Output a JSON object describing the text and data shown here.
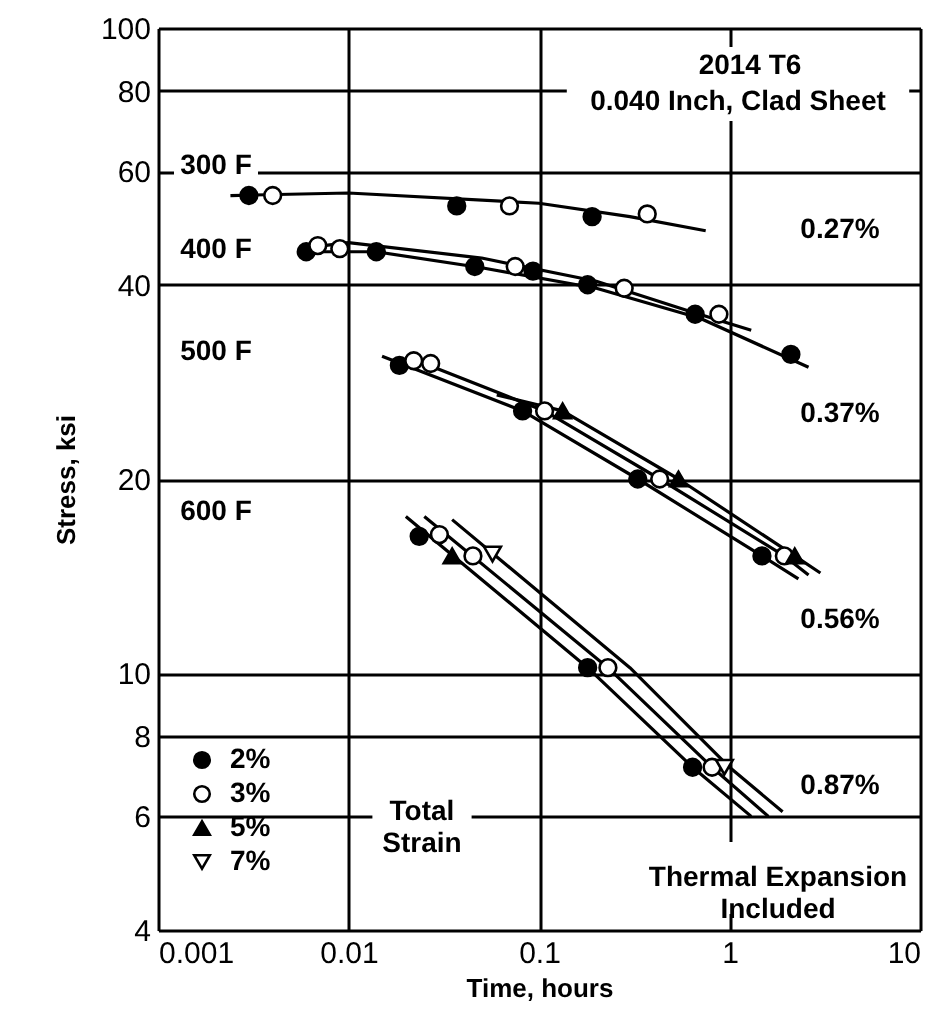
{
  "chart_data": {
    "type": "scatter",
    "title": "2014 T6",
    "subtitle": "0.040 Inch, Clad Sheet",
    "xlabel": "Time, hours",
    "ylabel": "Stress, ksi",
    "legend_title": "Total Strain",
    "legend": "bottom left",
    "grid": true,
    "log": "xy",
    "xlim": [
      0.001,
      10
    ],
    "ylim": [
      4,
      100
    ],
    "xticks": [
      0.001,
      0.01,
      0.1,
      1,
      10
    ],
    "yticks": [
      4,
      6,
      8,
      10,
      20,
      40,
      60,
      80,
      100
    ],
    "series": [
      {
        "name": "2%",
        "marker": "circle",
        "color": "#000000",
        "x": [
          0.003,
          0.037,
          0.19,
          0.006,
          0.014,
          0.046,
          0.093,
          0.18,
          0.66,
          2.1,
          0.0185,
          0.082,
          0.33,
          1.48,
          0.0235,
          0.18,
          0.64
        ],
        "values": [
          55,
          53,
          51,
          45,
          45,
          42.7,
          42,
          40,
          36,
          31.2,
          30,
          25.5,
          20,
          15.2,
          16.3,
          10.2,
          7.15
        ]
      },
      {
        "name": "3%",
        "marker": "circle",
        "color": "#ffffff",
        "x": [
          0.004,
          0.07,
          0.37,
          0.0069,
          0.009,
          0.075,
          0.28,
          0.88,
          0.022,
          0.027,
          0.107,
          0.43,
          1.94,
          0.03,
          0.045,
          0.23,
          0.81
        ],
        "values": [
          55,
          53,
          51.5,
          46,
          45.5,
          42.7,
          39.5,
          36,
          30.5,
          30.2,
          25.5,
          20,
          15.2,
          16.4,
          15.2,
          10.2,
          7.15
        ]
      },
      {
        "name": "5%",
        "marker": "triangle",
        "color": "#000000",
        "x": [
          0.133,
          0.54,
          2.2,
          0.035
        ],
        "values": [
          25.5,
          20,
          15.2,
          15.2
        ]
      },
      {
        "name": "7%",
        "marker": "triangle-down",
        "color": "#ffffff",
        "x": [
          0.057,
          0.94
        ],
        "values": [
          15.3,
          7.15
        ]
      },
      {
        "type": "line",
        "marker": "none",
        "line_style": "solid",
        "color": "#000000",
        "x": [
          0.0024,
          0.01,
          0.1,
          0.3,
          0.75
        ],
        "values": [
          55,
          55.5,
          53.5,
          51,
          48.5
        ]
      },
      {
        "type": "line",
        "marker": "none",
        "line_style": "solid",
        "color": "#000000",
        "x": [
          0.0055,
          0.01,
          0.05,
          0.2,
          0.6,
          1.3
        ],
        "values": [
          45.5,
          46.5,
          44,
          40.5,
          36.5,
          34
        ]
      },
      {
        "type": "line",
        "marker": "none",
        "line_style": "solid",
        "color": "#000000",
        "x": [
          0.006,
          0.014,
          0.05,
          0.2,
          0.7,
          2.6
        ],
        "values": [
          45,
          45,
          42.5,
          39.5,
          35.5,
          29.8
        ]
      },
      {
        "type": "line",
        "marker": "none",
        "line_style": "solid",
        "color": "#000000",
        "x": [
          0.015,
          0.082,
          0.33,
          1.48,
          2.3
        ],
        "values": [
          31,
          25.5,
          20,
          15.2,
          14
        ]
      },
      {
        "type": "line",
        "marker": "none",
        "line_style": "solid",
        "color": "#000000",
        "x": [
          0.02,
          0.107,
          0.43,
          1.94,
          2.6
        ],
        "values": [
          31,
          25.5,
          20,
          15.2,
          14.2
        ]
      },
      {
        "type": "line",
        "marker": "none",
        "line_style": "solid",
        "color": "#000000",
        "x": [
          0.06,
          0.133,
          0.54,
          2.2,
          3.0
        ],
        "values": [
          27,
          25.5,
          20,
          15.2,
          14.3
        ]
      },
      {
        "type": "line",
        "marker": "none",
        "line_style": "solid",
        "color": "#000000",
        "x": [
          0.02,
          0.18,
          0.64,
          1.3
        ],
        "values": [
          17.5,
          10.2,
          7.15,
          6.0
        ]
      },
      {
        "type": "line",
        "marker": "none",
        "line_style": "solid",
        "color": "#000000",
        "x": [
          0.025,
          0.23,
          0.81,
          1.6
        ],
        "values": [
          17.5,
          10.2,
          7.15,
          6.0
        ]
      },
      {
        "type": "line",
        "marker": "none",
        "line_style": "solid",
        "color": "#000000",
        "x": [
          0.035,
          0.3,
          1.0,
          1.9
        ],
        "values": [
          17.3,
          10.2,
          7.15,
          6.1
        ]
      }
    ],
    "annotations": [
      "300 F",
      "400 F",
      "500 F",
      "600 F",
      "0.27%",
      "0.37%",
      "0.56%",
      "0.87%",
      "Thermal Expansion\nIncluded"
    ]
  }
}
